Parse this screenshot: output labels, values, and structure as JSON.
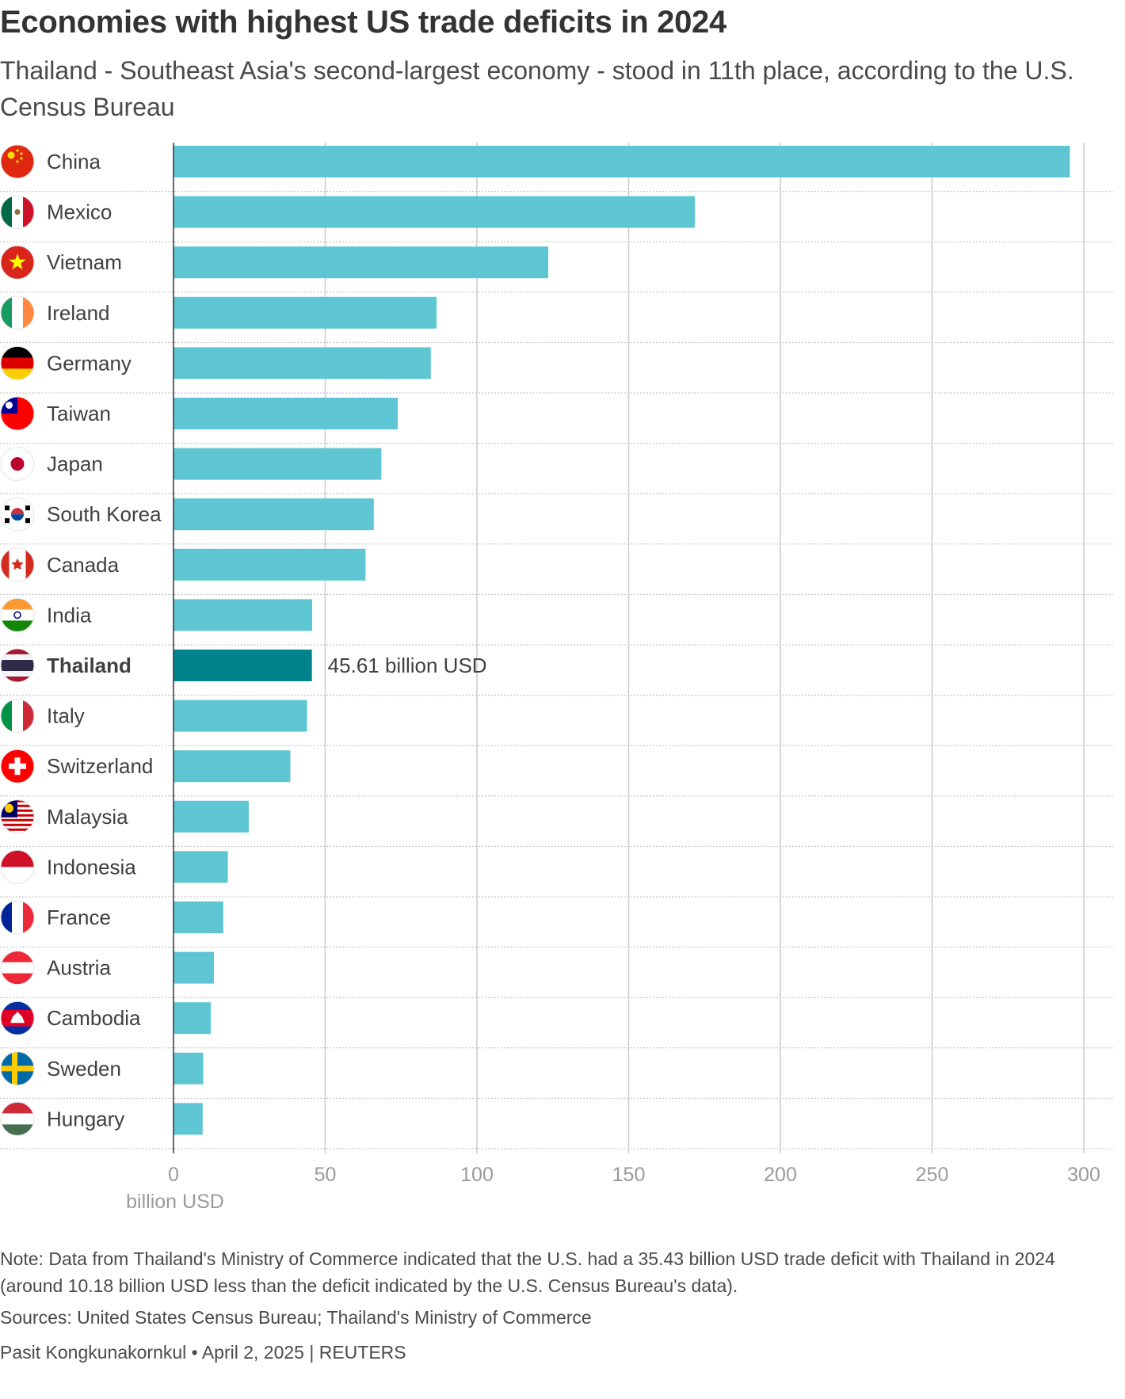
{
  "title": "Economies with highest US trade deficits in 2024",
  "subtitle": "Thailand - Southeast Asia's second-largest economy - stood in 11th place, according to the U.S. Census Bureau",
  "chart_data": {
    "type": "bar",
    "orientation": "horizontal",
    "categories": [
      "China",
      "Mexico",
      "Vietnam",
      "Ireland",
      "Germany",
      "Taiwan",
      "Japan",
      "South Korea",
      "Canada",
      "India",
      "Thailand",
      "Italy",
      "Switzerland",
      "Malaysia",
      "Indonesia",
      "France",
      "Austria",
      "Cambodia",
      "Sweden",
      "Hungary"
    ],
    "values": [
      295.4,
      171.8,
      123.5,
      86.7,
      84.8,
      73.9,
      68.5,
      66.0,
      63.3,
      45.7,
      45.61,
      44.0,
      38.5,
      24.8,
      17.9,
      16.4,
      13.3,
      12.3,
      9.8,
      9.6
    ],
    "highlight": "Thailand",
    "highlight_label": "45.61 billion USD",
    "xticks": [
      "0",
      "50",
      "100",
      "150",
      "200",
      "250",
      "300"
    ],
    "xlim": [
      0,
      300
    ],
    "xlabel": "billion USD",
    "grid": true,
    "colors": {
      "bar": "#5ec6d3",
      "highlight": "#00838a",
      "grid": "#cccccc",
      "axis": "#333333"
    },
    "flags": [
      "china-flag-icon",
      "mexico-flag-icon",
      "vietnam-flag-icon",
      "ireland-flag-icon",
      "germany-flag-icon",
      "taiwan-flag-icon",
      "japan-flag-icon",
      "south-korea-flag-icon",
      "canada-flag-icon",
      "india-flag-icon",
      "thailand-flag-icon",
      "italy-flag-icon",
      "switzerland-flag-icon",
      "malaysia-flag-icon",
      "indonesia-flag-icon",
      "france-flag-icon",
      "austria-flag-icon",
      "cambodia-flag-icon",
      "sweden-flag-icon",
      "hungary-flag-icon"
    ]
  },
  "note": "Note: Data from Thailand's Ministry of Commerce indicated that the U.S. had a 35.43 billion USD trade deficit with Thailand in 2024 (around 10.18 billion USD less than the deficit indicated by the U.S. Census Bureau's data).",
  "sources": "Sources: United States Census Bureau; Thailand's Ministry of Commerce",
  "byline": "Pasit Kongkunakornkul • April 2, 2025 | REUTERS"
}
